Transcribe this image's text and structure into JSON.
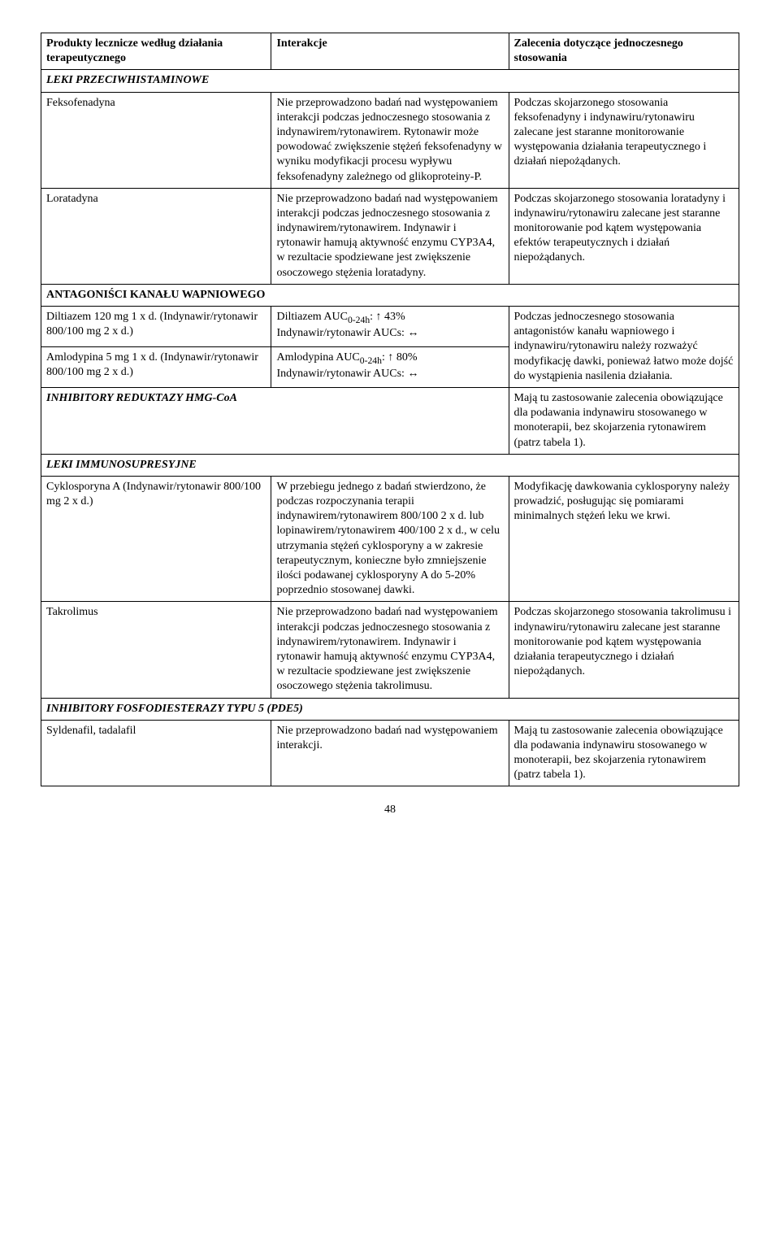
{
  "table": {
    "headers": {
      "col1": "Produkty lecznicze według działania terapeutycznego",
      "col2": "Interakcje",
      "col3": "Zalecenia dotyczące jednoczesnego stosowania"
    },
    "sections": {
      "antihistamines": {
        "title": "LEKI PRZECIWHISTAMINOWE",
        "rows": [
          {
            "product": "Feksofenadyna",
            "interaction": "Nie przeprowadzono badań nad występowaniem interakcji podczas jednoczesnego stosowania z indynawirem/rytonawirem. Rytonawir może powodować zwiększenie stężeń feksofenadyny w wyniku modyfikacji procesu wypływu feksofenadyny zależnego od glikoproteiny-P.",
            "recommendation": "Podczas skojarzonego stosowania feksofenadyny i indynawiru/rytonawiru zalecane jest staranne monitorowanie występowania działania terapeutycznego i działań niepożądanych."
          },
          {
            "product": "Loratadyna",
            "interaction": "Nie przeprowadzono badań nad występowaniem interakcji podczas jednoczesnego stosowania z indynawirem/rytonawirem. Indynawir i rytonawir hamują aktywność enzymu CYP3A4, w rezultacie spodziewane jest zwiększenie osoczowego stężenia loratadyny.",
            "recommendation": "Podczas skojarzonego stosowania loratadyny i indynawiru/rytonawiru zalecane jest staranne monitorowanie pod kątem występowania efektów terapeutycznych i działań niepożądanych."
          }
        ]
      },
      "calcium_antagonists": {
        "title": "ANTAGONIŚCI KANAŁU WAPNIOWEGO",
        "rows": [
          {
            "product": "Diltiazem 120 mg 1 x d. (Indynawir/rytonawir 800/100 mg 2 x d.)",
            "interaction_line1": "Diltiazem AUC",
            "interaction_sub1": "0-24h",
            "interaction_after1": ": ↑ 43%",
            "interaction_line2": "Indynawir/rytonawir AUCs: ↔"
          },
          {
            "product": "Amlodypina 5 mg 1 x d. (Indynawir/rytonawir 800/100 mg 2 x d.)",
            "interaction_line1": "Amlodypina AUC",
            "interaction_sub1": "0-24h",
            "interaction_after1": ": ↑ 80%",
            "interaction_line2": "Indynawir/rytonawir AUCs: ↔"
          }
        ],
        "shared_recommendation": "Podczas jednoczesnego stosowania antagonistów kanału wapniowego i indynawiru/rytonawiru należy rozważyć modyfikację dawki, ponieważ łatwo może dojść do wystąpienia nasilenia działania."
      },
      "hmg_coa": {
        "title": "INHIBITORY REDUKTAZY HMG-CoA",
        "recommendation": "Mają tu zastosowanie zalecenia obowiązujące dla podawania indynawiru stosowanego w monoterapii, bez skojarzenia rytonawirem (patrz tabela 1)."
      },
      "immunosuppressive": {
        "title": "LEKI IMMUNOSUPRESYJNE",
        "rows": [
          {
            "product": "Cyklosporyna A (Indynawir/rytonawir 800/100 mg 2 x d.)",
            "interaction": "W przebiegu jednego z badań stwierdzono, że podczas rozpoczynania terapii indynawirem/rytonawirem 800/100 2 x d. lub lopinawirem/rytonawirem 400/100 2 x d., w celu utrzymania stężeń cyklosporyny a w zakresie terapeutycznym, konieczne było zmniejszenie ilości podawanej cyklosporyny A do 5-20% poprzednio stosowanej dawki.",
            "recommendation": "Modyfikację dawkowania cyklosporyny należy prowadzić, posługując się pomiarami minimalnych stężeń leku we krwi."
          },
          {
            "product": "Takrolimus",
            "interaction": "Nie przeprowadzono badań nad występowaniem interakcji podczas jednoczesnego stosowania z indynawirem/rytonawirem. Indynawir i rytonawir hamują aktywność enzymu CYP3A4, w rezultacie spodziewane jest zwiększenie osoczowego stężenia takrolimusu.",
            "recommendation": "Podczas skojarzonego stosowania takrolimusu i indynawiru/rytonawiru zalecane jest staranne monitorowanie pod kątem występowania działania terapeutycznego i działań niepożądanych."
          }
        ]
      },
      "pde5": {
        "title": "INHIBITORY FOSFODIESTERAZY TYPU 5 (PDE5)",
        "rows": [
          {
            "product": "Syldenafil, tadalafil",
            "interaction": "Nie przeprowadzono badań nad występowaniem interakcji.",
            "recommendation": "Mają tu zastosowanie zalecenia obowiązujące dla podawania indynawiru stosowanego w monoterapii, bez skojarzenia rytonawirem (patrz tabela 1)."
          }
        ]
      }
    }
  },
  "page_number": "48",
  "style": {
    "font_family": "Times New Roman",
    "font_size_pt": 11,
    "border_color": "#000000",
    "background_color": "#ffffff",
    "text_color": "#000000"
  }
}
